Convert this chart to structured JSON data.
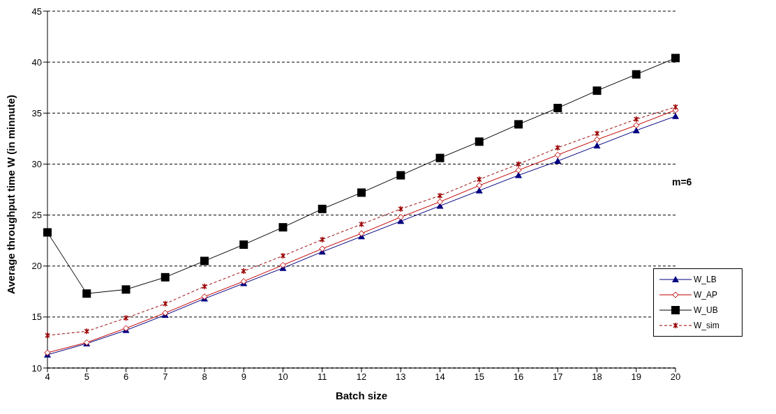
{
  "chart_data": {
    "type": "line",
    "xlabel": "Batch size",
    "ylabel": "Average throughput time W  (in minnute)",
    "annotations": [
      "m=6"
    ],
    "categories": [
      "4",
      "5",
      "6",
      "7",
      "8",
      "9",
      "10",
      "11",
      "12",
      "13",
      "14",
      "15",
      "16",
      "17",
      "18",
      "19",
      "20"
    ],
    "series": [
      {
        "name": "W_LB",
        "color": "#000080",
        "marker": "triangle",
        "line_style": "solid",
        "values": [
          11.3,
          12.4,
          13.7,
          15.2,
          16.8,
          18.3,
          19.8,
          21.4,
          22.9,
          24.4,
          25.9,
          27.4,
          28.9,
          30.3,
          31.8,
          33.3,
          34.7
        ]
      },
      {
        "name": "W_AP",
        "color": "#c00000",
        "marker": "diamond",
        "line_style": "solid",
        "values": [
          11.5,
          12.5,
          13.9,
          15.4,
          17.0,
          18.5,
          20.1,
          21.7,
          23.2,
          24.8,
          26.3,
          27.9,
          29.4,
          30.9,
          32.4,
          33.8,
          35.3
        ]
      },
      {
        "name": "W_UB",
        "color": "#000000",
        "marker": "square",
        "line_style": "solid",
        "values": [
          23.3,
          17.3,
          17.7,
          18.9,
          20.5,
          22.1,
          23.8,
          25.6,
          27.2,
          28.9,
          30.6,
          32.2,
          33.9,
          35.5,
          37.2,
          38.8,
          40.4
        ]
      },
      {
        "name": "W_sim",
        "color": "#990000",
        "marker": "cross",
        "line_style": "dashed",
        "values": [
          13.2,
          13.6,
          14.9,
          16.3,
          18.0,
          19.5,
          21.0,
          22.6,
          24.1,
          25.6,
          26.9,
          28.5,
          30.0,
          31.6,
          33.0,
          34.4,
          35.6
        ]
      }
    ],
    "ylim": [
      10,
      45
    ],
    "yticks": [
      10,
      15,
      20,
      25,
      30,
      35,
      40,
      45
    ],
    "grid": "y",
    "legend": "bottom right"
  }
}
